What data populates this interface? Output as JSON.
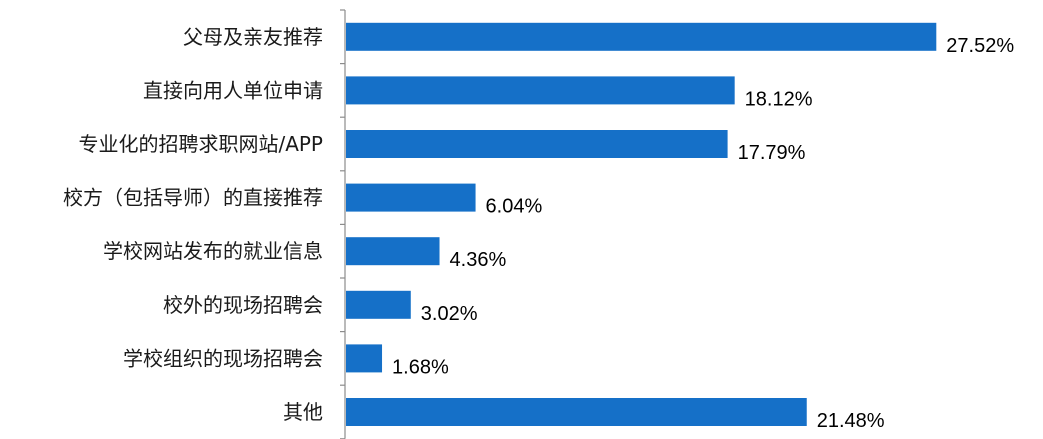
{
  "chart_data": {
    "type": "bar",
    "orientation": "horizontal",
    "title": "",
    "xlabel": "",
    "ylabel": "",
    "grid": false,
    "legend": "none",
    "bar_color": "#1570C8",
    "categories": [
      "父母及亲友推荐",
      "直接向用人单位申请",
      "专业化的招聘求职网站/APP",
      "校方（包括导师）的直接推荐",
      "学校网站发布的就业信息",
      "校外的现场招聘会",
      "学校组织的现场招聘会",
      "其他"
    ],
    "values": [
      27.52,
      18.12,
      17.79,
      6.04,
      4.36,
      3.02,
      1.68,
      21.48
    ],
    "value_labels": [
      "27.52%",
      "18.12%",
      "17.79%",
      "6.04%",
      "4.36%",
      "3.02%",
      "1.68%",
      "21.48%"
    ],
    "xlim": [
      0,
      30
    ]
  }
}
